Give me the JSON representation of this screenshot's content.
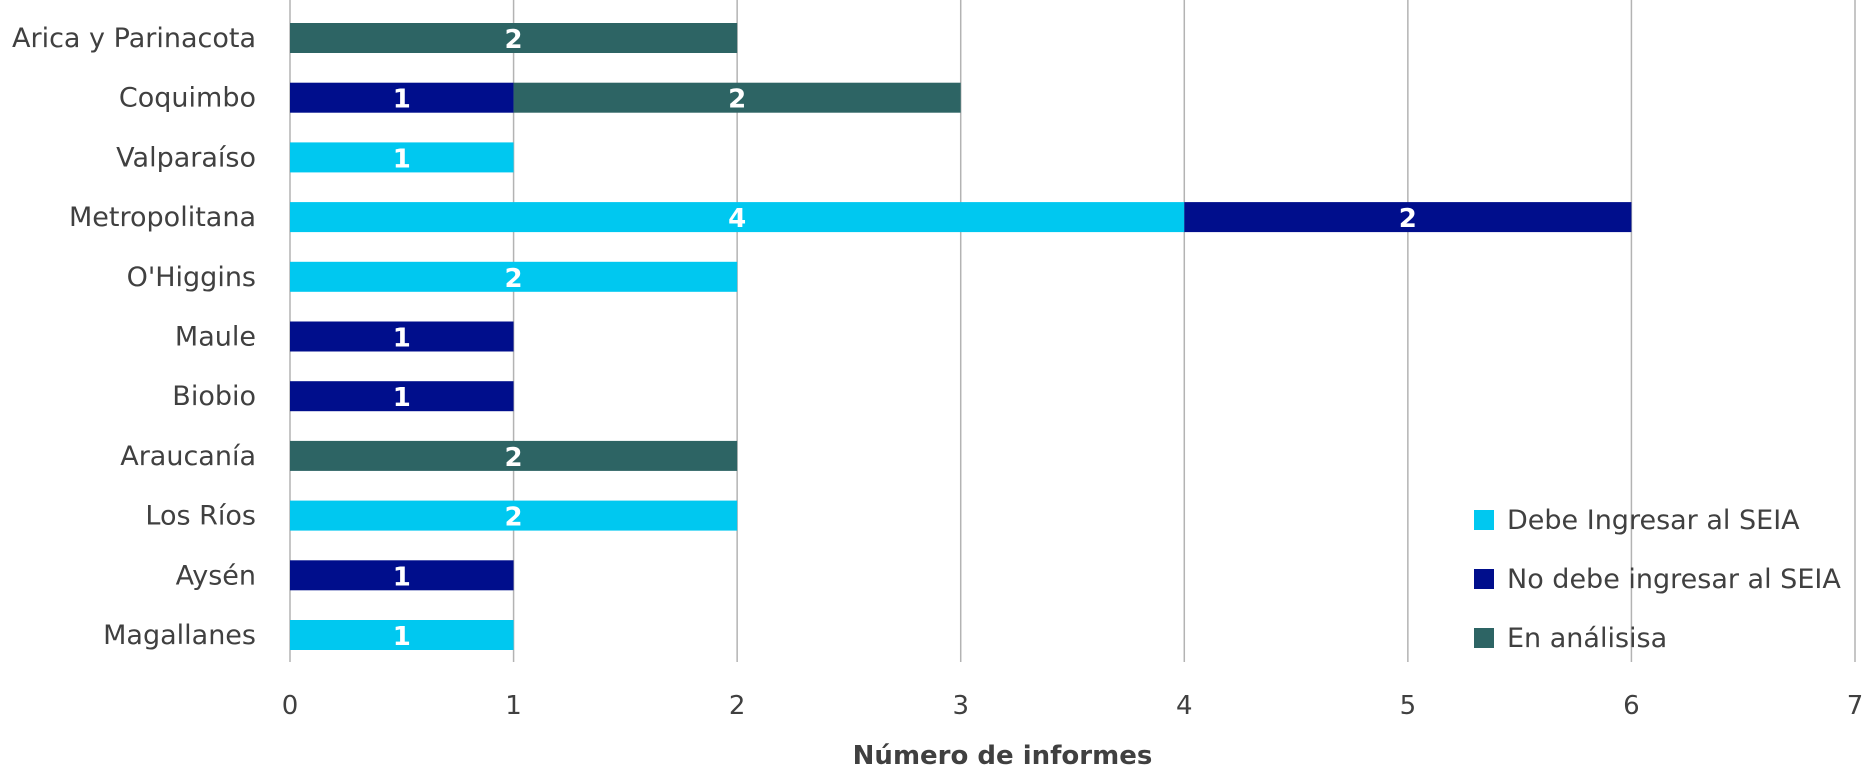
{
  "chart_data": {
    "type": "bar",
    "orientation": "horizontal",
    "stacked": true,
    "categories": [
      "Arica y Parinacota",
      "Coquimbo",
      "Valparaíso",
      "Metropolitana",
      "O'Higgins",
      "Maule",
      "Biobio",
      "Araucanía",
      "Los Ríos",
      "Aysén",
      "Magallanes"
    ],
    "series": [
      {
        "name": "Debe Ingresar al SEIA",
        "color": "#00c8f0",
        "values": [
          0,
          0,
          1,
          4,
          2,
          0,
          0,
          0,
          2,
          0,
          1
        ]
      },
      {
        "name": "No debe ingresar al SEIA",
        "color": "#000e8c",
        "values": [
          0,
          1,
          0,
          2,
          0,
          1,
          1,
          0,
          0,
          1,
          0
        ]
      },
      {
        "name": "En análisisa",
        "color": "#2d6464",
        "values": [
          2,
          2,
          0,
          0,
          0,
          0,
          0,
          2,
          0,
          0,
          0
        ]
      }
    ],
    "xlabel": "Número de informes",
    "ylabel": "",
    "xlim": [
      0,
      7
    ],
    "xticks": [
      "0",
      "1",
      "2",
      "3",
      "4",
      "5",
      "6",
      "7"
    ],
    "grid": "vertical",
    "legend_position": "bottom-right",
    "data_labels": true
  }
}
